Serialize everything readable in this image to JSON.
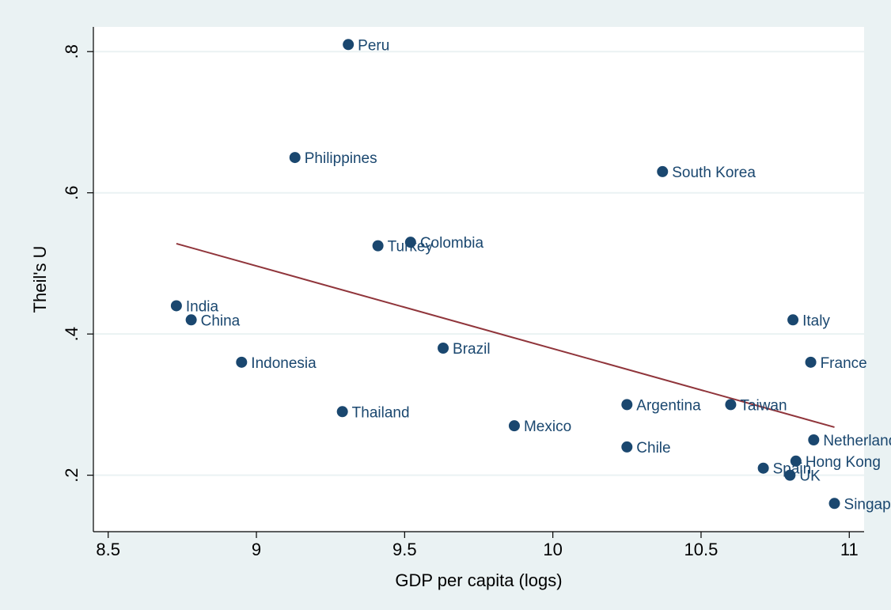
{
  "chart_data": {
    "type": "scatter",
    "title": "",
    "xlabel": "GDP per capita (logs)",
    "ylabel": "Theil's U",
    "xlim": [
      8.45,
      11.05
    ],
    "ylim": [
      0.12,
      0.835
    ],
    "x_ticks": [
      8.5,
      9,
      9.5,
      10,
      10.5,
      11
    ],
    "x_tick_labels": [
      "8.5",
      "9",
      "9.5",
      "10",
      "10.5",
      "11"
    ],
    "y_ticks": [
      0.2,
      0.4,
      0.6,
      0.8
    ],
    "y_tick_labels": [
      ".2",
      ".4",
      ".6",
      ".8"
    ],
    "grid": "horizontal",
    "legend": "none",
    "background_color": "#eaf2f3",
    "plot_background_color": "#ffffff",
    "marker_color": "#1a476f",
    "label_color": "#1a476f",
    "fit_color": "#90353b",
    "points": [
      {
        "label": "Peru",
        "x": 9.31,
        "y": 0.81
      },
      {
        "label": "Philippines",
        "x": 9.13,
        "y": 0.65
      },
      {
        "label": "South Korea",
        "x": 10.37,
        "y": 0.63
      },
      {
        "label": "Colombia",
        "x": 9.52,
        "y": 0.53
      },
      {
        "label": "Turkey",
        "x": 9.41,
        "y": 0.525
      },
      {
        "label": "India",
        "x": 8.73,
        "y": 0.44
      },
      {
        "label": "China",
        "x": 8.78,
        "y": 0.42
      },
      {
        "label": "Italy",
        "x": 10.81,
        "y": 0.42
      },
      {
        "label": "Brazil",
        "x": 9.63,
        "y": 0.38
      },
      {
        "label": "Indonesia",
        "x": 8.95,
        "y": 0.36
      },
      {
        "label": "France",
        "x": 10.87,
        "y": 0.36
      },
      {
        "label": "Thailand",
        "x": 9.29,
        "y": 0.29
      },
      {
        "label": "Argentina",
        "x": 10.25,
        "y": 0.3
      },
      {
        "label": "Taiwan",
        "x": 10.6,
        "y": 0.3
      },
      {
        "label": "Mexico",
        "x": 9.87,
        "y": 0.27
      },
      {
        "label": "Chile",
        "x": 10.25,
        "y": 0.24
      },
      {
        "label": "Netherlands",
        "x": 10.88,
        "y": 0.25
      },
      {
        "label": "Hong Kong",
        "x": 10.82,
        "y": 0.22
      },
      {
        "label": "Spain",
        "x": 10.71,
        "y": 0.21
      },
      {
        "label": "UK",
        "x": 10.8,
        "y": 0.2
      },
      {
        "label": "Singapore",
        "x": 10.95,
        "y": 0.16
      }
    ],
    "fit_line": {
      "x": [
        8.73,
        10.95
      ],
      "y": [
        0.528,
        0.268
      ]
    }
  }
}
